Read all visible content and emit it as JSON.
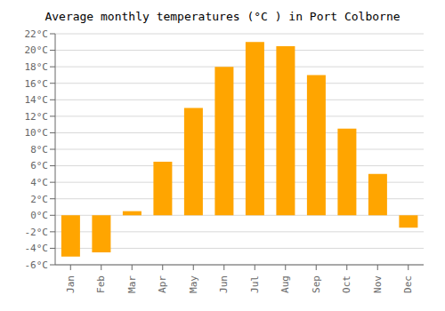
{
  "chart_data": {
    "type": "bar",
    "title": "Average monthly temperatures (°C ) in Port Colborne",
    "categories": [
      "Jan",
      "Feb",
      "Mar",
      "Apr",
      "May",
      "Jun",
      "Jul",
      "Aug",
      "Sep",
      "Oct",
      "Nov",
      "Dec"
    ],
    "values": [
      -5.0,
      -4.5,
      0.5,
      6.5,
      13.0,
      18.0,
      21.0,
      20.5,
      17.0,
      10.5,
      5.0,
      -1.5
    ],
    "color": "#FFA500",
    "ylim": [
      -6,
      22
    ],
    "yticks": [
      {
        "value": -6,
        "label": "-6°C"
      },
      {
        "value": -4,
        "label": "-4°C"
      },
      {
        "value": -2,
        "label": "-2°C"
      },
      {
        "value": 0,
        "label": "0°C"
      },
      {
        "value": 2,
        "label": "2°C"
      },
      {
        "value": 4,
        "label": "4°C"
      },
      {
        "value": 6,
        "label": "6°C"
      },
      {
        "value": 8,
        "label": "8°C"
      },
      {
        "value": 10,
        "label": "10°C"
      },
      {
        "value": 12,
        "label": "12°C"
      },
      {
        "value": 14,
        "label": "14°C"
      },
      {
        "value": 16,
        "label": "16°C"
      },
      {
        "value": 18,
        "label": "18°C"
      },
      {
        "value": 20,
        "label": "20°C"
      },
      {
        "value": 22,
        "label": "22°C"
      }
    ],
    "grid": true
  }
}
